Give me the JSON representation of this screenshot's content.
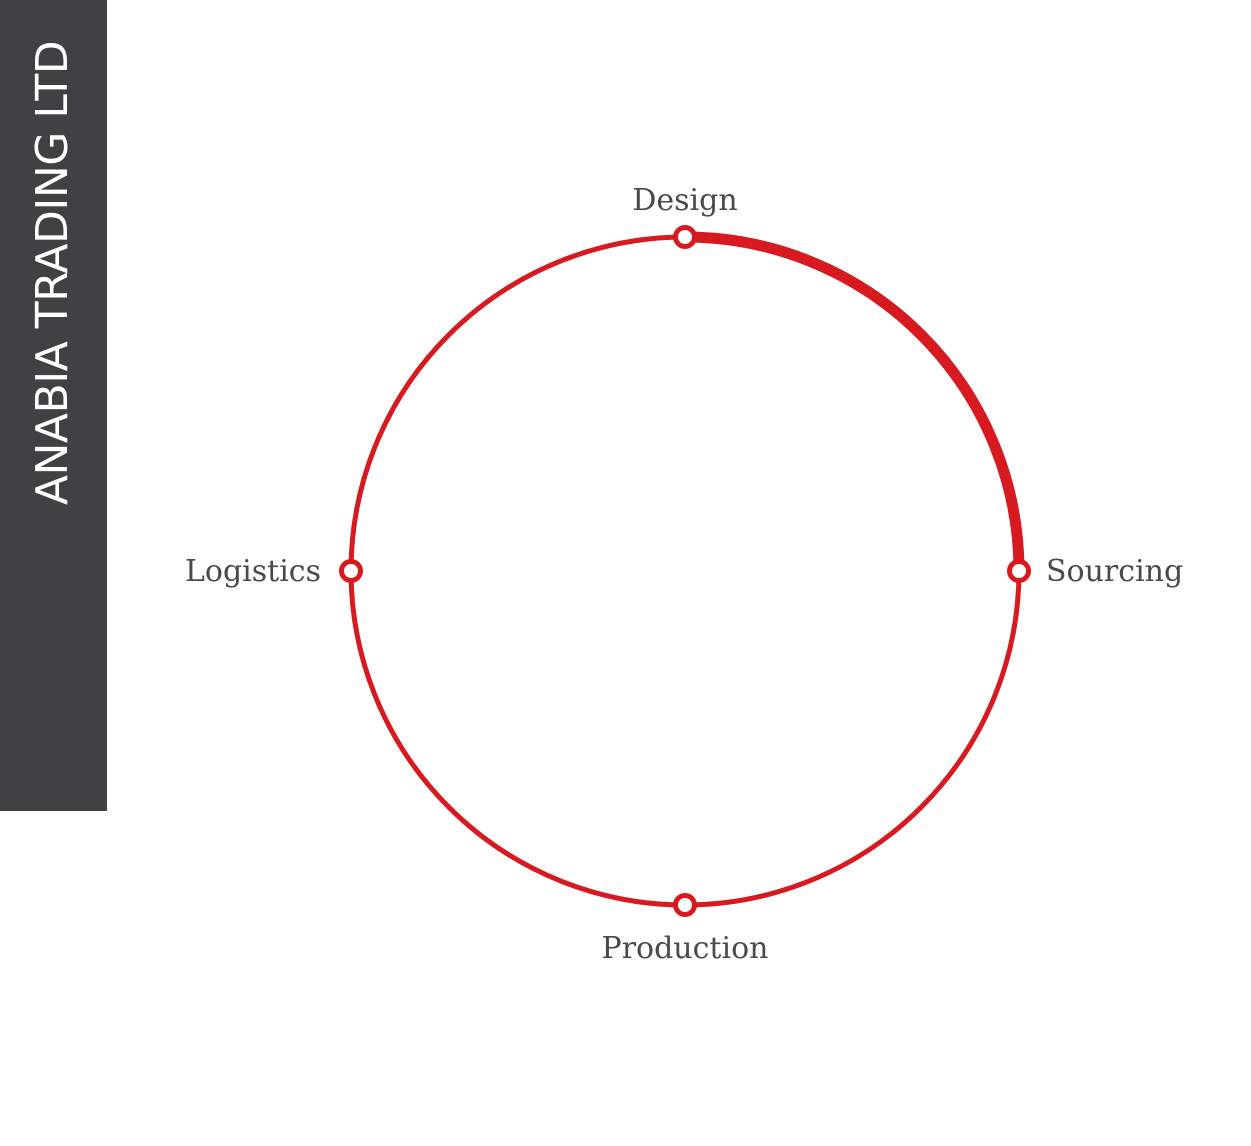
{
  "brand": {
    "name": "ANABIA TRADING LTD"
  },
  "colors": {
    "accent": "#d71920",
    "panel": "#414143",
    "label": "#4a4a4c"
  },
  "cycle": {
    "stages": [
      {
        "label": "Design"
      },
      {
        "label": "Sourcing"
      },
      {
        "label": "Production"
      },
      {
        "label": "Logistics"
      }
    ],
    "highlighted_segment": {
      "from": "Design",
      "to": "Sourcing"
    }
  }
}
